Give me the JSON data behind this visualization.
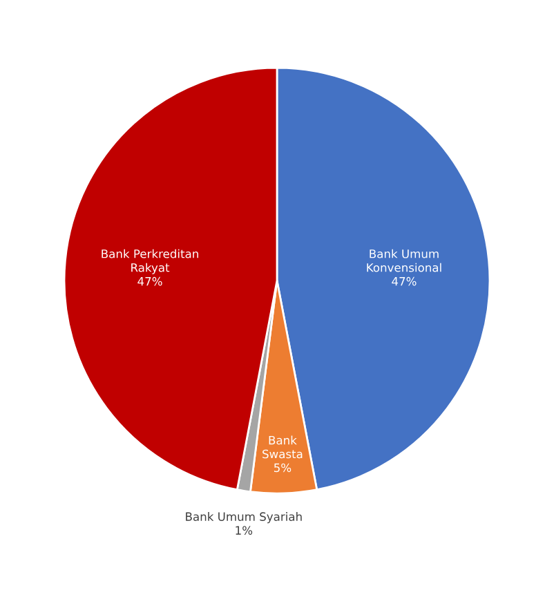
{
  "chart_data": {
    "type": "pie",
    "categories": [
      "Bank Umum Konvensional",
      "Bank Swasta",
      "Bank Umum Syariah",
      "Bank Perkreditan Rakyat"
    ],
    "values": [
      47,
      5,
      1,
      47
    ],
    "value_labels": [
      "47%",
      "5%",
      "1%",
      "47%"
    ],
    "colors": [
      "#4472c4",
      "#ed7d31",
      "#a5a5a5",
      "#c00000"
    ],
    "legend": false
  }
}
